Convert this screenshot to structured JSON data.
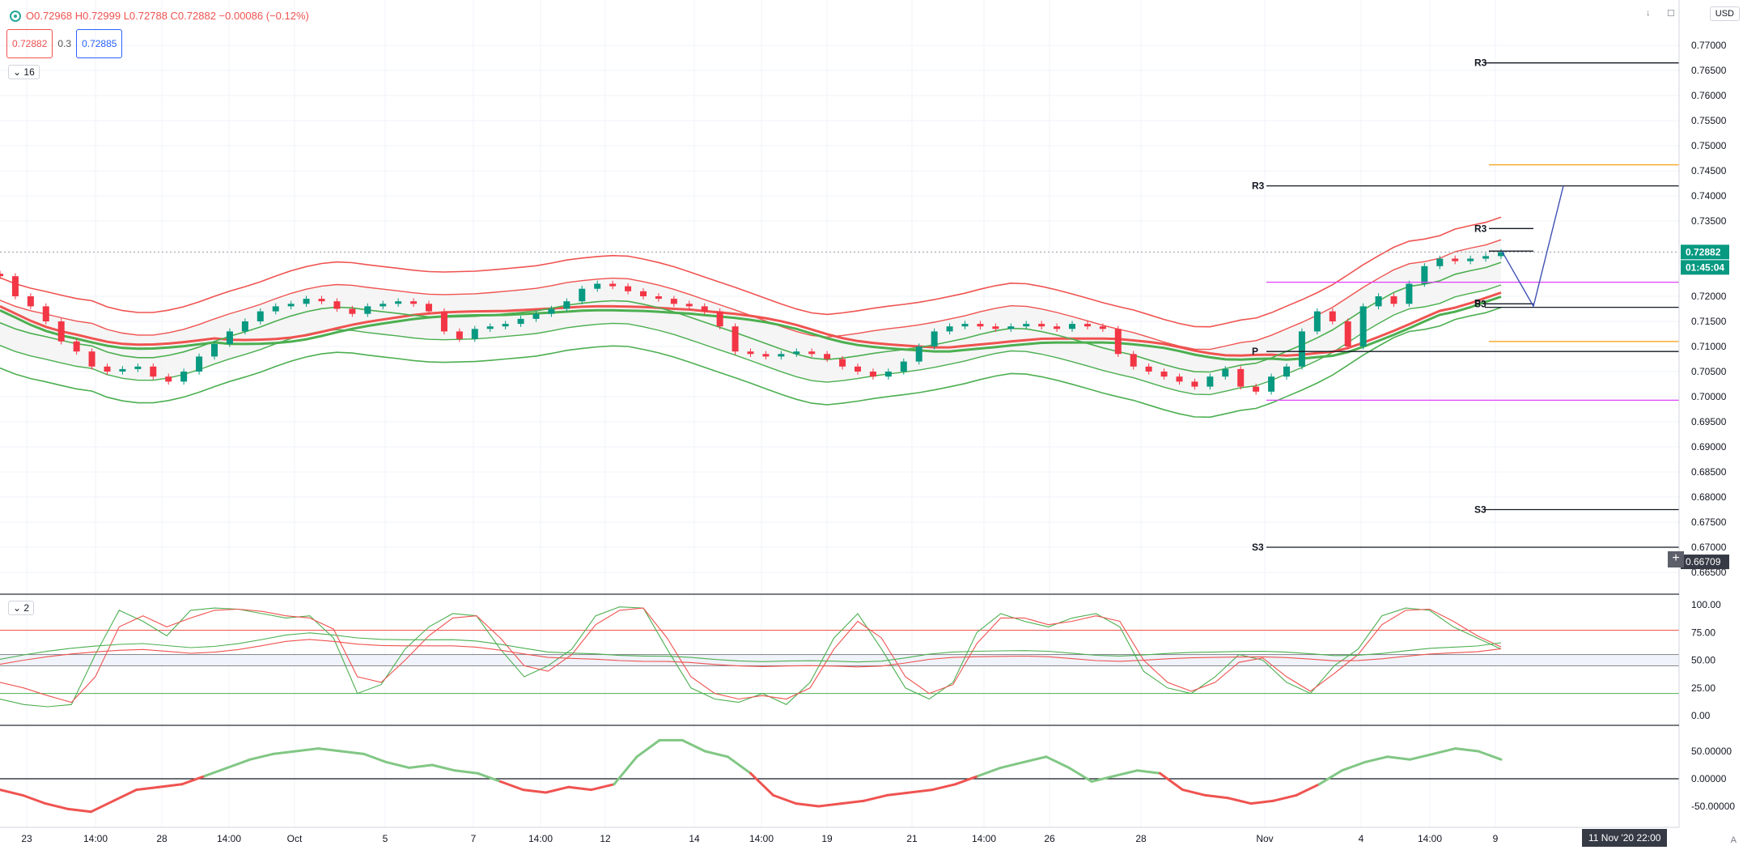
{
  "toolbar": {
    "ohlc": "O0.72968 H0.72999 L0.72788 C0.72882 −0.00086 (−0.12%)",
    "sell_price": "0.72882",
    "spread": "0.3",
    "buy_price": "0.72885",
    "main_pane_toggle": "16",
    "stoch_pane_toggle": "2",
    "currency": "USD",
    "auto_label": "A"
  },
  "price_axis": {
    "labels": [
      "0.77000",
      "0.76500",
      "0.76000",
      "0.75500",
      "0.75000",
      "0.74500",
      "0.74000",
      "0.73500",
      "0.72000",
      "0.71500",
      "0.71000",
      "0.70500",
      "0.70000",
      "0.69500",
      "0.69000",
      "0.68500",
      "0.68000",
      "0.67500",
      "0.67000",
      "0.66500"
    ],
    "last_price": "0.72882",
    "countdown": "01:45:04",
    "crosshair_price": "0.66709"
  },
  "stoch_axis": {
    "labels": [
      "100.00",
      "75.00",
      "50.00",
      "25.00",
      "0.00"
    ]
  },
  "osc_axis": {
    "labels": [
      "50.00000",
      "0.00000",
      "-50.00000"
    ]
  },
  "time_axis": {
    "labels": [
      "23",
      "14:00",
      "28",
      "14:00",
      "Oct",
      "5",
      "7",
      "14:00",
      "12",
      "14",
      "14:00",
      "19",
      "21",
      "14:00",
      "26",
      "28",
      "Nov",
      "4",
      "14:00",
      "9"
    ],
    "crosshair_time": "11 Nov '20   22:00"
  },
  "pivot_labels": {
    "r3_upper": "R3",
    "r3_main": "R3",
    "r3_small": "R3",
    "s3_small": "S3",
    "p_small": "P",
    "p_main": "P",
    "s3_upper": "S3",
    "s3_main": "S3"
  },
  "colors": {
    "bull": "#26a69a",
    "candle_up": "#089981",
    "candle_down": "#f23645",
    "band_red": "#ef5350",
    "band_green": "#4caf50",
    "pivot_black": "#131722",
    "orange": "#f5a623",
    "magenta": "#e040fb",
    "blue_projection": "#3f51b5",
    "last_price_bg": "#089981"
  },
  "chart_data": {
    "type": "candlestick",
    "symbol_quote": "USD",
    "ylim": [
      0.66,
      0.78
    ],
    "last_close": 0.72882,
    "pivot_levels": {
      "R3_far": 0.7665,
      "R3": 0.742,
      "R3_near": 0.7335,
      "S3_near": 0.7185,
      "P_near": 0.7178,
      "P": 0.709,
      "S3_far": 0.6775,
      "S3": 0.67
    },
    "horizontal_lines": {
      "orange_upper": 0.7462,
      "orange_lower": 0.711,
      "magenta_upper": 0.7228,
      "magenta_lower": 0.6993
    },
    "projection_path": [
      0.729,
      0.718,
      0.742
    ],
    "close_series": [
      0.724,
      0.72,
      0.718,
      0.715,
      0.711,
      0.709,
      0.706,
      0.705,
      0.7055,
      0.706,
      0.704,
      0.703,
      0.705,
      0.708,
      0.7105,
      0.713,
      0.715,
      0.717,
      0.718,
      0.7185,
      0.7195,
      0.719,
      0.7175,
      0.7165,
      0.718,
      0.7185,
      0.719,
      0.7185,
      0.717,
      0.713,
      0.7115,
      0.7135,
      0.714,
      0.7145,
      0.7155,
      0.7165,
      0.7175,
      0.719,
      0.7215,
      0.7225,
      0.722,
      0.721,
      0.72,
      0.7195,
      0.7185,
      0.718,
      0.717,
      0.714,
      0.709,
      0.7085,
      0.708,
      0.7085,
      0.709,
      0.7085,
      0.7075,
      0.706,
      0.705,
      0.704,
      0.705,
      0.707,
      0.71,
      0.713,
      0.714,
      0.7145,
      0.714,
      0.7135,
      0.714,
      0.7145,
      0.714,
      0.7135,
      0.7145,
      0.714,
      0.7135,
      0.7085,
      0.706,
      0.705,
      0.704,
      0.703,
      0.702,
      0.704,
      0.7055,
      0.702,
      0.701,
      0.704,
      0.706,
      0.713,
      0.717,
      0.715,
      0.71,
      0.718,
      0.72,
      0.7185,
      0.7225,
      0.726,
      0.7275,
      0.727,
      0.7275,
      0.728,
      0.7288
    ],
    "stochastic": {
      "levels": [
        80,
        50,
        20
      ],
      "k_series": [
        15,
        10,
        8,
        10,
        55,
        95,
        85,
        72,
        95,
        97,
        96,
        92,
        88,
        90,
        70,
        20,
        28,
        60,
        80,
        92,
        90,
        60,
        35,
        45,
        60,
        90,
        98,
        97,
        60,
        25,
        15,
        12,
        20,
        10,
        30,
        70,
        92,
        60,
        25,
        15,
        30,
        75,
        92,
        85,
        80,
        88,
        92,
        80,
        40,
        25,
        20,
        35,
        55,
        50,
        30,
        20,
        45,
        60,
        90,
        97,
        95,
        80,
        70,
        60
      ],
      "d_series": [
        30,
        25,
        18,
        12,
        35,
        80,
        90,
        80,
        88,
        95,
        96,
        94,
        90,
        88,
        78,
        35,
        30,
        50,
        72,
        88,
        90,
        70,
        45,
        40,
        55,
        82,
        95,
        97,
        70,
        35,
        20,
        15,
        18,
        15,
        25,
        60,
        85,
        70,
        35,
        20,
        28,
        65,
        88,
        88,
        82,
        85,
        90,
        85,
        50,
        30,
        22,
        30,
        48,
        52,
        35,
        22,
        38,
        55,
        82,
        95,
        96,
        85,
        72,
        62
      ]
    },
    "oscillator": {
      "zero_line": 0,
      "series": [
        -20,
        -30,
        -45,
        -55,
        -60,
        -40,
        -20,
        -15,
        -10,
        5,
        20,
        35,
        45,
        50,
        55,
        50,
        45,
        30,
        20,
        25,
        15,
        10,
        -5,
        -20,
        -25,
        -15,
        -20,
        -10,
        40,
        70,
        70,
        50,
        40,
        10,
        -30,
        -45,
        -50,
        -45,
        -40,
        -30,
        -25,
        -20,
        -10,
        5,
        20,
        30,
        40,
        20,
        -5,
        5,
        15,
        10,
        -20,
        -30,
        -35,
        -45,
        -40,
        -30,
        -10,
        15,
        30,
        40,
        35,
        45,
        55,
        50,
        35
      ]
    }
  }
}
